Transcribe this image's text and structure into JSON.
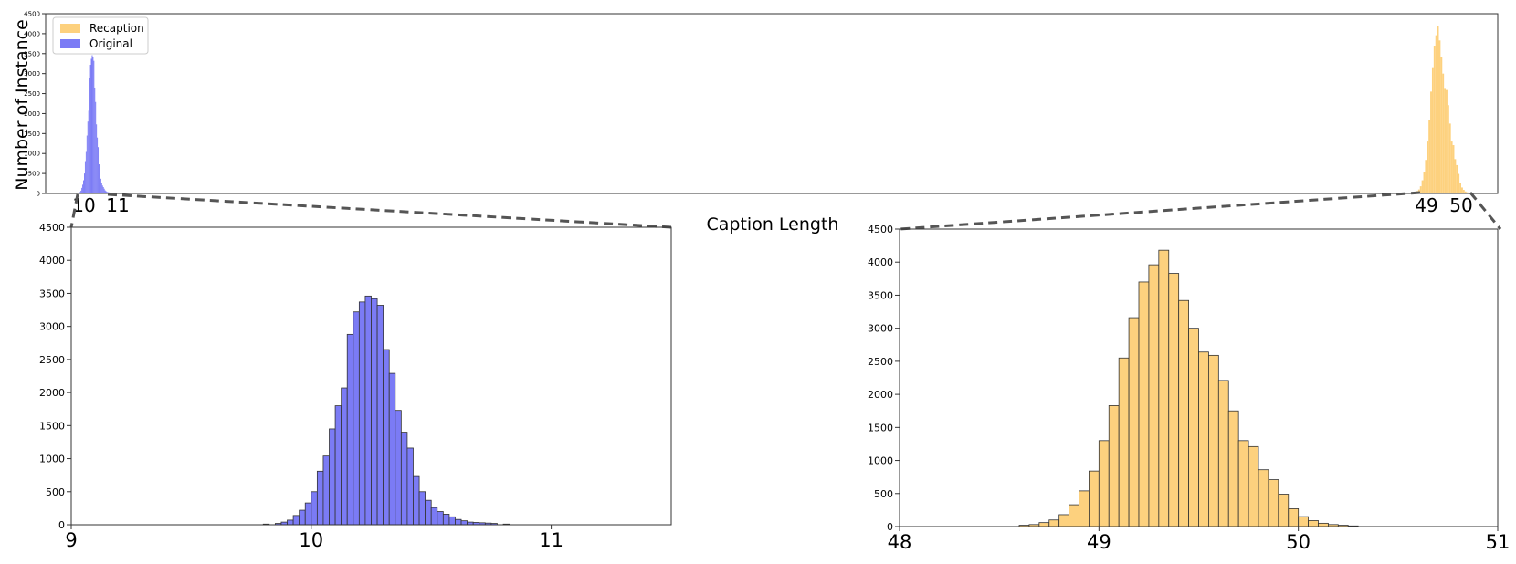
{
  "chart_data": [
    {
      "type": "bar",
      "ylabel": "Number of Instance",
      "xlabel": "Caption Length",
      "x_tick_labels": [
        "10",
        "11",
        "49",
        "50"
      ],
      "ylim": [
        0,
        4500
      ],
      "y_ticks": [
        0,
        500,
        1000,
        1500,
        2000,
        2500,
        3000,
        3500,
        4000,
        4500
      ],
      "legend": {
        "placement": "top-left",
        "entries": [
          "Recaption",
          "Original"
        ]
      },
      "series": [
        {
          "name": "Recaption",
          "color": "#fdd17e",
          "bin_edges": [
            48.0,
            51.0
          ],
          "values": []
        },
        {
          "name": "Original",
          "color": "#7b7bf5",
          "bin_edges": [
            9.0,
            11.5
          ],
          "values": []
        }
      ],
      "grid": false
    },
    {
      "type": "bar",
      "color": "#7b7bf5",
      "xlim": [
        9,
        11.5
      ],
      "x_ticks": [
        9,
        10,
        11
      ],
      "ylim": [
        0,
        4500
      ],
      "y_ticks": [
        0,
        500,
        1000,
        1500,
        2000,
        2500,
        3000,
        3500,
        4000,
        4500
      ],
      "bins": {
        "x": [
          9.8,
          9.85,
          9.875,
          9.9,
          9.925,
          9.95,
          9.975,
          10.0,
          10.025,
          10.05,
          10.075,
          10.1,
          10.125,
          10.15,
          10.175,
          10.2,
          10.225,
          10.25,
          10.275,
          10.3,
          10.325,
          10.35,
          10.375,
          10.4,
          10.425,
          10.45,
          10.475,
          10.5,
          10.525,
          10.55,
          10.575,
          10.6,
          10.625,
          10.65,
          10.675,
          10.7,
          10.725,
          10.75,
          10.8
        ],
        "values": [
          10,
          20,
          40,
          70,
          140,
          220,
          330,
          500,
          810,
          1040,
          1450,
          1800,
          2070,
          2880,
          3220,
          3370,
          3460,
          3420,
          3320,
          2650,
          2290,
          1730,
          1400,
          1160,
          730,
          500,
          370,
          260,
          200,
          160,
          120,
          80,
          60,
          40,
          35,
          30,
          25,
          20,
          10
        ],
        "width": 0.025
      },
      "grid": false
    },
    {
      "type": "bar",
      "color": "#fdd17e",
      "xlim": [
        48,
        51
      ],
      "x_ticks": [
        48,
        49,
        50,
        51
      ],
      "ylim": [
        0,
        4500
      ],
      "y_ticks": [
        0,
        500,
        1000,
        1500,
        2000,
        2500,
        3000,
        3500,
        4000,
        4500
      ],
      "bins": {
        "x": [
          48.6,
          48.65,
          48.7,
          48.75,
          48.8,
          48.85,
          48.9,
          48.95,
          49.0,
          49.05,
          49.1,
          49.15,
          49.2,
          49.25,
          49.3,
          49.35,
          49.4,
          49.45,
          49.5,
          49.55,
          49.6,
          49.65,
          49.7,
          49.75,
          49.8,
          49.85,
          49.9,
          49.95,
          50.0,
          50.05,
          50.1,
          50.15,
          50.2,
          50.25
        ],
        "values": [
          20,
          30,
          60,
          100,
          180,
          330,
          540,
          840,
          1300,
          1830,
          2550,
          3160,
          3700,
          3960,
          4180,
          3830,
          3420,
          3000,
          2640,
          2590,
          2210,
          1750,
          1300,
          1210,
          860,
          710,
          490,
          270,
          150,
          90,
          50,
          30,
          20,
          10
        ],
        "width": 0.05
      },
      "grid": false
    }
  ]
}
